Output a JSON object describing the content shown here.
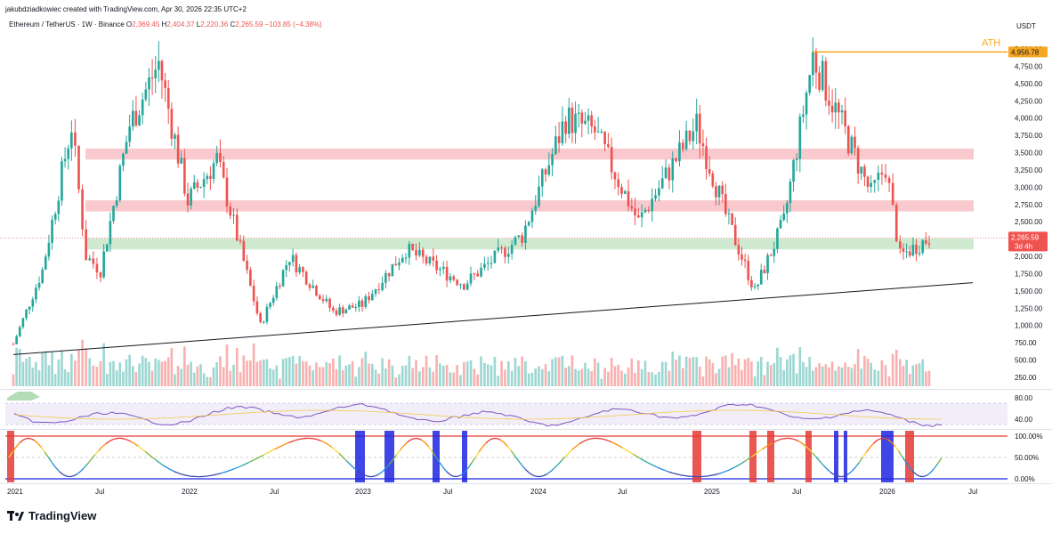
{
  "header": {
    "author_line": "jakubdziadkowiec created with TradingView.com, Apr 30, 2026 22:35 UTC+2"
  },
  "legend": {
    "symbol": "Ethereum / TetherUS · 1W · Binance",
    "open_label": "O",
    "open": "2,369.45",
    "high_label": "H",
    "high": "2,404.37",
    "low_label": "L",
    "low": "2,220.36",
    "close_label": "C",
    "close": "2,265.59",
    "change": "−103.85 (−4.38%)"
  },
  "price_axis": {
    "unit": "USDT",
    "ticks": [
      "5,000.00",
      "4,750.00",
      "4,500.00",
      "4,250.00",
      "4,000.00",
      "3,750.00",
      "3,500.00",
      "3,250.00",
      "3,000.00",
      "2,750.00",
      "2,500.00",
      "2,250.00",
      "2,000.00",
      "1,750.00",
      "1,500.00",
      "1,250.00",
      "1,000.00",
      "750.00",
      "500.00",
      "250.00"
    ],
    "ath_label": "ATH",
    "ath_value": "4,956.78",
    "last_price": "2,265.59",
    "countdown": "3d 4h"
  },
  "rsi_axis": {
    "ticks": [
      "80.00",
      "40.00"
    ]
  },
  "stoch_axis": {
    "ticks": [
      "100.00%",
      "50.00%",
      "0.00%"
    ]
  },
  "time_axis": {
    "ticks": [
      "2021",
      "Jul",
      "2022",
      "Jul",
      "2023",
      "Jul",
      "2024",
      "Jul",
      "2025",
      "Jul",
      "2026",
      "Jul"
    ]
  },
  "footer": {
    "brand": "TradingView"
  },
  "colors": {
    "up": "#26a69a",
    "down": "#ef5350",
    "ath": "#f5a623",
    "zone_red": "#f8bfc4",
    "zone_green": "#c8e6c9",
    "rsi": "#7e57c2",
    "stoch_hi": "#e53935",
    "stoch_lo": "#1e24e0"
  },
  "zones": [
    {
      "kind": "resistance",
      "from": 3400,
      "to": 3560
    },
    {
      "kind": "resistance",
      "from": 2650,
      "to": 2810
    },
    {
      "kind": "support",
      "from": 2100,
      "to": 2260
    }
  ],
  "trendline": {
    "from": {
      "date": "2021-01",
      "price": 580
    },
    "to": {
      "date": "2026-07",
      "price": 1620
    }
  },
  "chart_data": {
    "type": "candlestick",
    "title": "Ethereum / TetherUS · 1W · Binance",
    "y_unit": "USDT",
    "ylim": [
      0,
      5100
    ],
    "x_range": [
      "2021-01",
      "2026-08"
    ],
    "price_path_approx": [
      {
        "date": "2021-01",
        "price": 730
      },
      {
        "date": "2021-03",
        "price": 1800
      },
      {
        "date": "2021-05",
        "price": 3900
      },
      {
        "date": "2021-06",
        "price": 2000
      },
      {
        "date": "2021-07",
        "price": 1800
      },
      {
        "date": "2021-09",
        "price": 3900
      },
      {
        "date": "2021-11",
        "price": 4800
      },
      {
        "date": "2022-01",
        "price": 2800
      },
      {
        "date": "2022-03",
        "price": 3400
      },
      {
        "date": "2022-06",
        "price": 1000
      },
      {
        "date": "2022-08",
        "price": 2000
      },
      {
        "date": "2022-11",
        "price": 1200
      },
      {
        "date": "2023-01",
        "price": 1300
      },
      {
        "date": "2023-04",
        "price": 2100
      },
      {
        "date": "2023-08",
        "price": 1600
      },
      {
        "date": "2023-12",
        "price": 2300
      },
      {
        "date": "2024-03",
        "price": 4000
      },
      {
        "date": "2024-05",
        "price": 3800
      },
      {
        "date": "2024-08",
        "price": 2500
      },
      {
        "date": "2024-12",
        "price": 3900
      },
      {
        "date": "2025-02",
        "price": 2600
      },
      {
        "date": "2025-04",
        "price": 1500
      },
      {
        "date": "2025-06",
        "price": 2500
      },
      {
        "date": "2025-08",
        "price": 4900
      },
      {
        "date": "2025-10",
        "price": 3900
      },
      {
        "date": "2025-12",
        "price": 2900
      },
      {
        "date": "2026-01",
        "price": 3300
      },
      {
        "date": "2026-02",
        "price": 2000
      },
      {
        "date": "2026-04",
        "price": 2265
      }
    ],
    "ath": 4956.78,
    "last": 2265.59
  }
}
